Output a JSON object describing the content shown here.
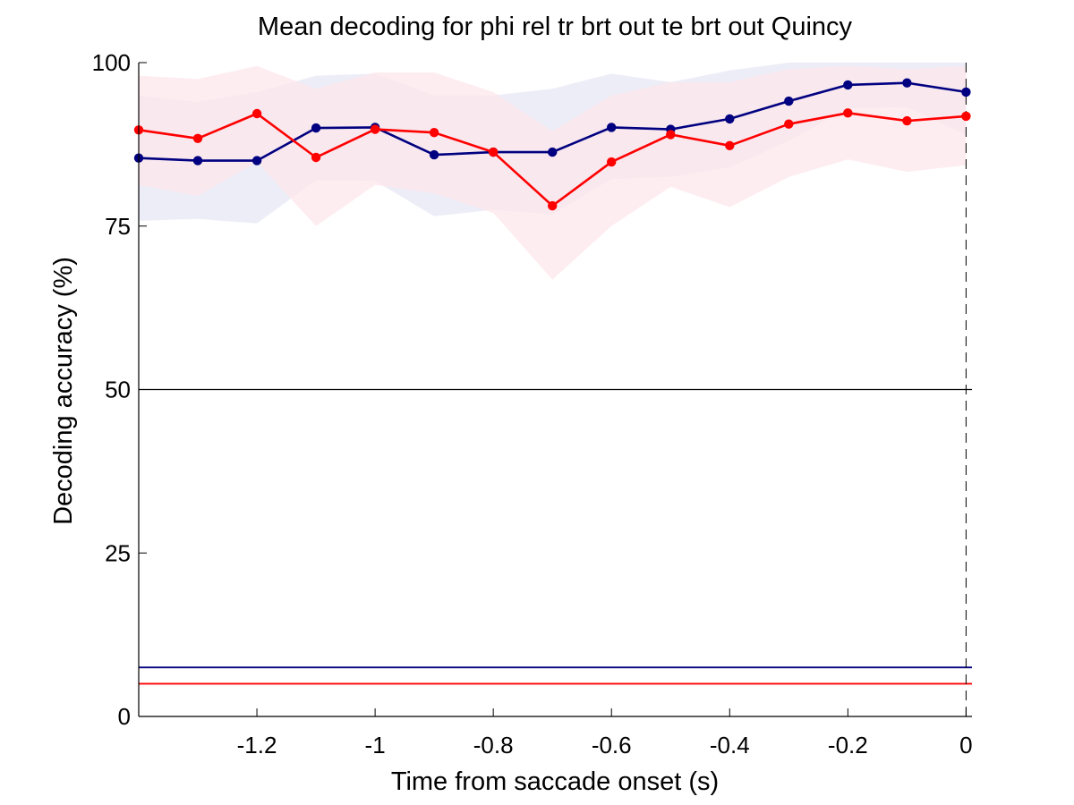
{
  "chart_data": {
    "type": "line",
    "title": "Mean decoding for phi rel tr brt out te brt out  Quincy",
    "xlabel": "Time from saccade onset (s)",
    "ylabel": "Decoding accuracy (%)",
    "xlim": [
      -1.4,
      0.01
    ],
    "ylim": [
      0,
      100
    ],
    "x_ticks": [
      -1.2,
      -1,
      -0.8,
      -0.6,
      -0.4,
      -0.2,
      0
    ],
    "x_tick_labels": [
      "-1.2",
      "-1",
      "-0.8",
      "-0.6",
      "-0.4",
      "-0.2",
      "0"
    ],
    "y_ticks": [
      0,
      25,
      50,
      75,
      100
    ],
    "y_tick_labels": [
      "0",
      "25",
      "50",
      "75",
      "100"
    ],
    "grid": false,
    "legend": null,
    "x": [
      -1.4,
      -1.3,
      -1.2,
      -1.1,
      -1.0,
      -0.9,
      -0.8,
      -0.7,
      -0.6,
      -0.5,
      -0.4,
      -0.3,
      -0.2,
      -0.1,
      0.0
    ],
    "series": [
      {
        "color": "#000080",
        "band_color": "#e6e6f5",
        "values": [
          85.4,
          85.0,
          85.0,
          90.0,
          90.1,
          85.9,
          86.3,
          86.3,
          90.1,
          89.8,
          91.4,
          94.1,
          96.6,
          96.9,
          95.5
        ],
        "upper": [
          94.9,
          94.0,
          95.5,
          98.0,
          98.3,
          95.0,
          95.0,
          96.0,
          98.3,
          97.0,
          98.8,
          100.0,
          100.0,
          100.0,
          100.0
        ],
        "lower": [
          75.8,
          76.1,
          75.4,
          82.0,
          81.9,
          76.5,
          77.5,
          76.8,
          82.2,
          82.5,
          84.0,
          88.0,
          93.0,
          93.2,
          88.9
        ],
        "chance": 7.5
      },
      {
        "color": "#ff0000",
        "band_color": "#fde6ea",
        "values": [
          89.7,
          88.4,
          92.2,
          85.5,
          89.8,
          89.3,
          86.3,
          78.1,
          84.8,
          89.0,
          87.3,
          90.6,
          92.3,
          91.1,
          91.8
        ],
        "upper": [
          98.0,
          97.5,
          99.5,
          96.0,
          98.5,
          98.5,
          95.5,
          89.5,
          95.0,
          97.0,
          97.0,
          99.0,
          99.5,
          99.0,
          99.5
        ],
        "lower": [
          81.3,
          79.6,
          84.8,
          75.0,
          81.3,
          80.0,
          77.0,
          66.8,
          75.0,
          81.0,
          77.9,
          82.5,
          85.2,
          83.3,
          84.3
        ],
        "chance": 5.0
      }
    ],
    "reference_lines": {
      "horizontal_y": 50,
      "horizontal_color": "#000000",
      "vertical_x": 0,
      "vertical_style": "dashed"
    }
  }
}
